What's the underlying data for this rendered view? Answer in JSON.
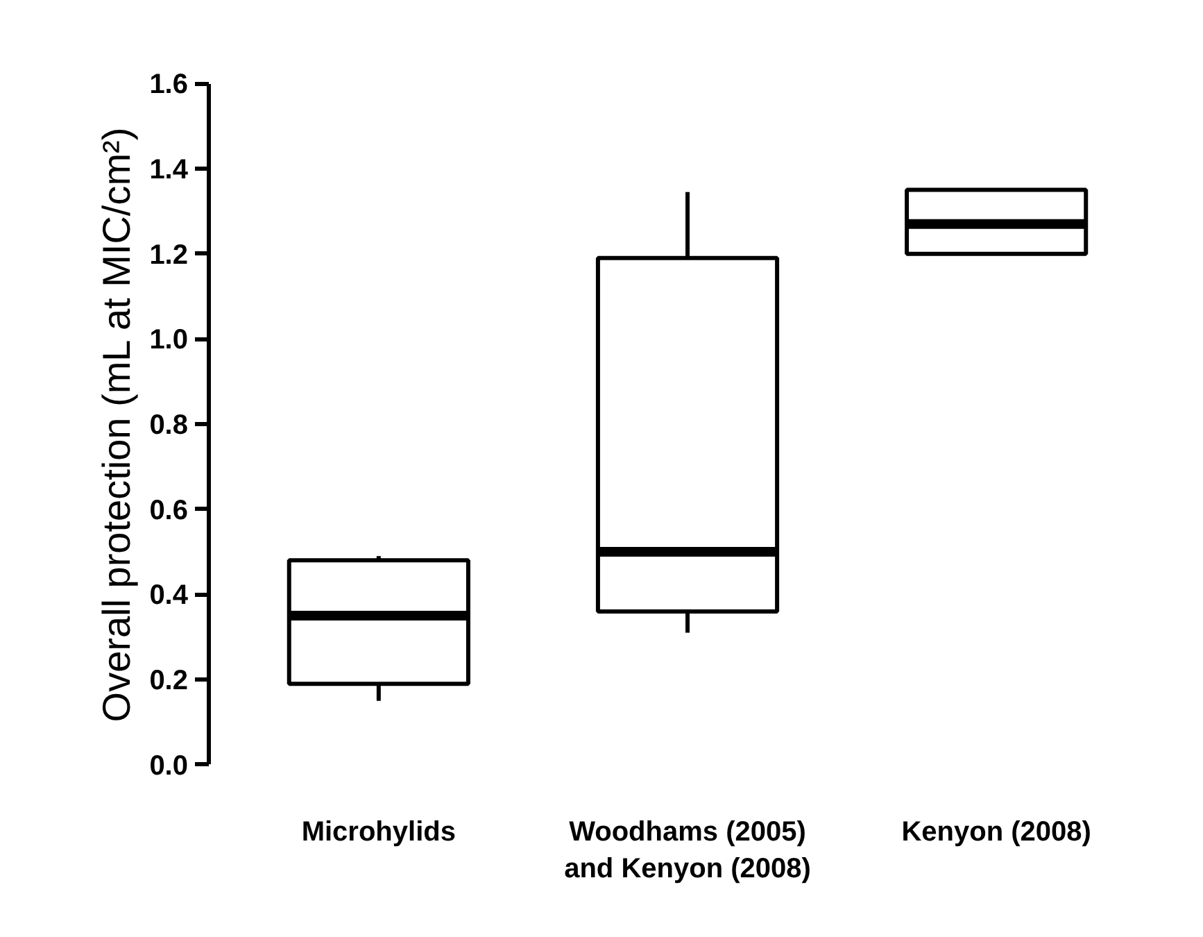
{
  "chart_data": {
    "type": "box",
    "ylabel": "Overall protection (mL at MIC/cm²)",
    "categories": [
      "Microhylids",
      "Woodhams (2005)\nand Kenyon (2008)",
      "Kenyon (2008)"
    ],
    "boxes": [
      {
        "low": 0.15,
        "q1": 0.19,
        "median": 0.35,
        "q3": 0.48,
        "high": 0.49
      },
      {
        "low": 0.31,
        "q1": 0.36,
        "median": 0.5,
        "q3": 1.19,
        "high": 1.345
      },
      {
        "low": 1.2,
        "q1": 1.2,
        "median": 1.27,
        "q3": 1.35,
        "high": 1.35
      }
    ],
    "ylim": [
      0,
      1.6
    ],
    "yticks": [
      {
        "value": 0,
        "label": "0.0"
      },
      {
        "value": 0.2,
        "label": "0.2"
      },
      {
        "value": 0.4,
        "label": "0.4"
      },
      {
        "value": 0.6,
        "label": "0.6"
      },
      {
        "value": 0.8,
        "label": "0.8"
      },
      {
        "value": 1.0,
        "label": "1.0"
      },
      {
        "value": 1.2,
        "label": "1.2"
      },
      {
        "value": 1.4,
        "label": "1.4"
      },
      {
        "value": 1.6,
        "label": "1.6"
      }
    ],
    "grid": false
  }
}
